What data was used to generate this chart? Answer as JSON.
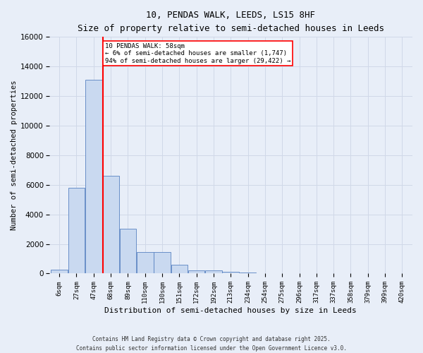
{
  "title_line1": "10, PENDAS WALK, LEEDS, LS15 8HF",
  "title_line2": "Size of property relative to semi-detached houses in Leeds",
  "xlabel": "Distribution of semi-detached houses by size in Leeds",
  "ylabel": "Number of semi-detached properties",
  "bin_labels": [
    "6sqm",
    "27sqm",
    "47sqm",
    "68sqm",
    "89sqm",
    "110sqm",
    "130sqm",
    "151sqm",
    "172sqm",
    "192sqm",
    "213sqm",
    "234sqm",
    "254sqm",
    "275sqm",
    "296sqm",
    "317sqm",
    "337sqm",
    "358sqm",
    "379sqm",
    "399sqm",
    "420sqm"
  ],
  "bar_heights": [
    250,
    5800,
    13100,
    6600,
    3050,
    1450,
    1450,
    600,
    230,
    200,
    100,
    60,
    30,
    15,
    10,
    5,
    3,
    2,
    1,
    1,
    0
  ],
  "bar_color": "#c9d9f0",
  "bar_edge_color": "#5882c1",
  "annotation_text": "10 PENDAS WALK: 58sqm\n← 6% of semi-detached houses are smaller (1,747)\n94% of semi-detached houses are larger (29,422) →",
  "annotation_box_color": "white",
  "annotation_box_edge_color": "red",
  "property_line_x": 58,
  "property_line_color": "red",
  "ylim": [
    0,
    16000
  ],
  "yticks": [
    0,
    2000,
    4000,
    6000,
    8000,
    10000,
    12000,
    14000,
    16000
  ],
  "grid_color": "#d0d8e8",
  "background_color": "#e8eef8",
  "footer_line1": "Contains HM Land Registry data © Crown copyright and database right 2025.",
  "footer_line2": "Contains public sector information licensed under the Open Government Licence v3.0.",
  "figsize": [
    6.0,
    5.0
  ],
  "dpi": 100
}
